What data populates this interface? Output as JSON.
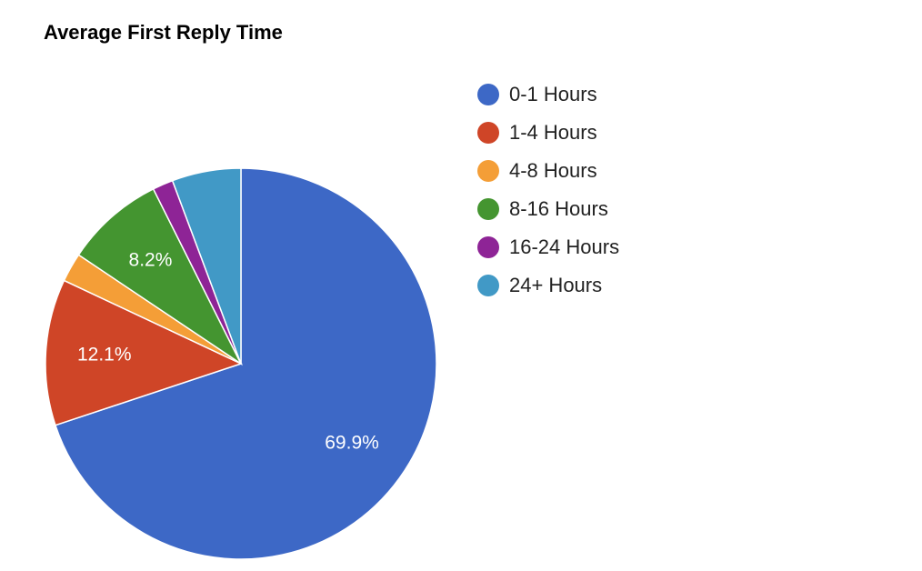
{
  "chart_data": {
    "type": "pie",
    "title": "Average First Reply Time",
    "categories": [
      "0-1 Hours",
      "1-4 Hours",
      "4-8 Hours",
      "8-16 Hours",
      "16-24 Hours",
      "24+ Hours"
    ],
    "values": [
      69.9,
      12.1,
      2.4,
      8.2,
      1.7,
      5.7
    ],
    "value_labels": [
      "69.9%",
      "12.1%",
      null,
      "8.2%",
      null,
      null
    ],
    "colors": [
      "#3d68c6",
      "#cf4527",
      "#f49e37",
      "#449530",
      "#8e2496",
      "#4199c6"
    ],
    "legend": "right"
  }
}
